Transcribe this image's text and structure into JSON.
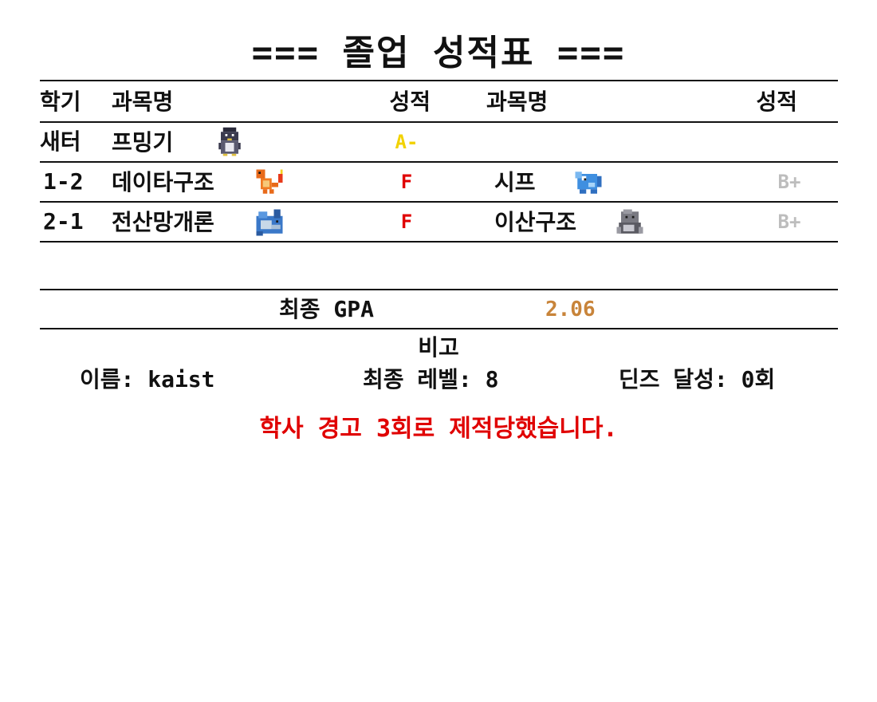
{
  "title": "=== 졸업 성적표 ===",
  "header": {
    "semester": "학기",
    "subject1": "과목명",
    "grade1": "성적",
    "subject2": "과목명",
    "grade2": "성적"
  },
  "rows": [
    {
      "semester": "새터",
      "subject1": "프밍기",
      "sprite1": "penguin-sprite-icon",
      "grade1": "A-",
      "grade1_color": "#f2d200",
      "subject2": "",
      "grade2": ""
    },
    {
      "semester": "1-2",
      "subject1": "데이타구조",
      "sprite1": "fire-lizard-sprite-icon",
      "grade1": "F",
      "grade1_color": "#e00000",
      "subject2": "시프",
      "sprite2": "blue-fish-sprite-icon",
      "grade2": "B+",
      "grade2_color": "#bdbdbd"
    },
    {
      "semester": "2-1",
      "subject1": "전산망개론",
      "sprite1": "sea-creature-sprite-icon",
      "grade1": "F",
      "grade1_color": "#e00000",
      "subject2": "이산구조",
      "sprite2": "rock-creature-sprite-icon",
      "grade2": "B+",
      "grade2_color": "#bdbdbd"
    }
  ],
  "gpa": {
    "label": "최종 GPA",
    "value": "2.06",
    "value_color": "#c8843a"
  },
  "remarks": {
    "title": "비고",
    "name": "이름: kaist",
    "level": "최종 레벨: 8",
    "deans_list": "딘즈 달성: 0회"
  },
  "warning": {
    "text": "학사 경고 3회로 제적당했습니다.",
    "color": "#e00000"
  }
}
